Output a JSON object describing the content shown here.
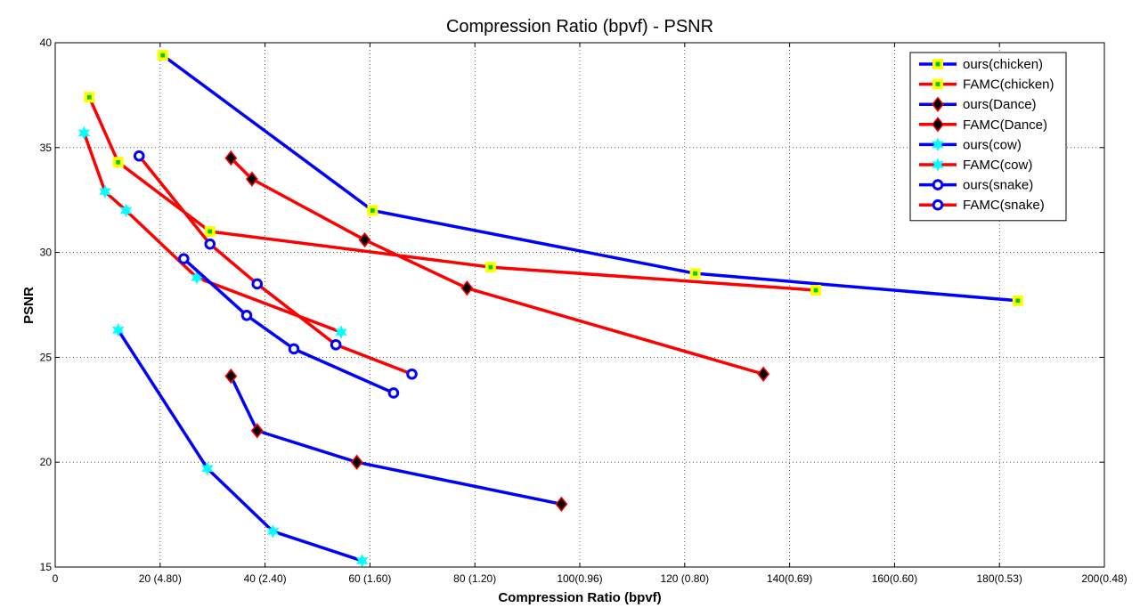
{
  "chart_data": {
    "type": "line",
    "title": "Compression Ratio (bpvf) - PSNR",
    "xlabel": "Compression Ratio (bpvf)",
    "ylabel": "PSNR",
    "xlim": [
      0,
      200
    ],
    "ylim": [
      15,
      40
    ],
    "grid": true,
    "legend_position": "top-right",
    "x_ticks": [
      {
        "value": 0,
        "label": "0"
      },
      {
        "value": 20,
        "label": "20 (4.80)"
      },
      {
        "value": 40,
        "label": "40 (2.40)"
      },
      {
        "value": 60,
        "label": "60 (1.60)"
      },
      {
        "value": 80,
        "label": "80 (1.20)"
      },
      {
        "value": 100,
        "label": "100(0.96)"
      },
      {
        "value": 120,
        "label": "120 (0.80)"
      },
      {
        "value": 140,
        "label": "140(0.69)"
      },
      {
        "value": 160,
        "label": "160(0.60)"
      },
      {
        "value": 180,
        "label": "180(0.53)"
      },
      {
        "value": 200,
        "label": "200(0.48)"
      }
    ],
    "y_ticks": [
      {
        "value": 15,
        "label": "15"
      },
      {
        "value": 20,
        "label": "20"
      },
      {
        "value": 25,
        "label": "25"
      },
      {
        "value": 30,
        "label": "30"
      },
      {
        "value": 35,
        "label": "35"
      },
      {
        "value": 40,
        "label": "40"
      }
    ],
    "series": [
      {
        "name": "ours(chicken)",
        "color": "#0000ff",
        "marker": "square",
        "marker_fill": "#ffff00",
        "marker_edge": "#00cc00",
        "x": [
          20.5,
          60.5,
          122,
          183.5
        ],
        "y": [
          39.4,
          32.0,
          29.0,
          27.7
        ]
      },
      {
        "name": "FAMC(chicken)",
        "color": "#ff0000",
        "marker": "square",
        "marker_fill": "#ffff00",
        "marker_edge": "#00cc00",
        "x": [
          6.5,
          12,
          29.5,
          83,
          145
        ],
        "y": [
          37.4,
          34.3,
          31.0,
          29.3,
          28.2
        ]
      },
      {
        "name": "ours(Dance)",
        "color": "#0000ff",
        "marker": "diamond",
        "marker_fill": "#000000",
        "marker_edge": "#ff0000",
        "x": [
          33.5,
          38.5,
          57.5,
          96.5
        ],
        "y": [
          24.1,
          21.5,
          20.0,
          18.0
        ]
      },
      {
        "name": "FAMC(Dance)",
        "color": "#ff0000",
        "marker": "diamond",
        "marker_fill": "#000000",
        "marker_edge": "#ff0000",
        "x": [
          33.5,
          37.5,
          59,
          78.5,
          135
        ],
        "y": [
          34.5,
          33.5,
          30.6,
          28.3,
          24.2
        ]
      },
      {
        "name": "ours(cow)",
        "color": "#0000ff",
        "marker": "star",
        "marker_fill": "#00ffff",
        "marker_edge": "#00ffff",
        "x": [
          12,
          29,
          41.5,
          58.5
        ],
        "y": [
          26.3,
          19.7,
          16.7,
          15.3
        ]
      },
      {
        "name": "FAMC(cow)",
        "color": "#ff0000",
        "marker": "star",
        "marker_fill": "#00ffff",
        "marker_edge": "#00ffff",
        "x": [
          5.5,
          9.5,
          13.5,
          27,
          54.5
        ],
        "y": [
          35.7,
          32.9,
          32.0,
          28.8,
          26.2
        ]
      },
      {
        "name": "ours(snake)",
        "color": "#0000ff",
        "marker": "circle",
        "marker_fill": "#ffffff",
        "marker_edge": "#0000ff",
        "x": [
          24.5,
          36.5,
          45.5,
          64.5
        ],
        "y": [
          29.7,
          27.0,
          25.4,
          23.3
        ]
      },
      {
        "name": "FAMC(snake)",
        "color": "#ff0000",
        "marker": "circle",
        "marker_fill": "#ffffff",
        "marker_edge": "#0000ff",
        "x": [
          16,
          29.5,
          38.5,
          53.5,
          68
        ],
        "y": [
          34.6,
          30.4,
          28.5,
          25.6,
          24.2
        ]
      }
    ]
  }
}
